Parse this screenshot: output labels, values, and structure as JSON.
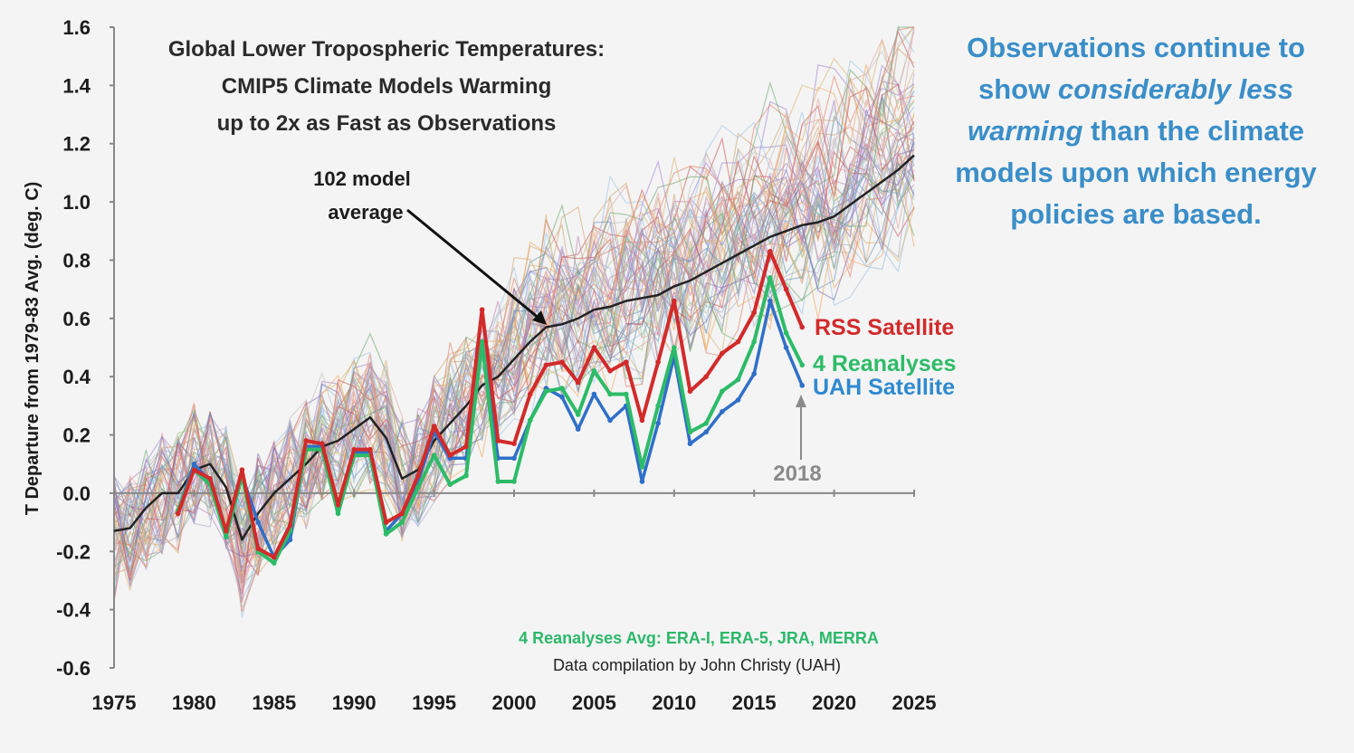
{
  "chart_data": {
    "type": "line",
    "title_lines": [
      "Global Lower Tropospheric Temperatures:",
      "CMIP5 Climate Models Warming",
      "up to 2x as Fast as Observations"
    ],
    "ylabel": "T Departure from 1979-83 Avg. (deg. C)",
    "xlim": [
      1975,
      2025
    ],
    "ylim": [
      -0.6,
      1.6
    ],
    "x_ticks": [
      "1975",
      "1980",
      "1985",
      "1990",
      "1995",
      "2000",
      "2005",
      "2010",
      "2015",
      "2020",
      "2025"
    ],
    "y_ticks": [
      "1.6",
      "1.4",
      "1.2",
      "1.0",
      "0.8",
      "0.6",
      "0.4",
      "0.2",
      "0.0",
      "-0.2",
      "-0.4",
      "-0.6"
    ],
    "annotations": {
      "model_avg_line1": "102 model",
      "model_avg_line2": "average",
      "year_2018": "2018"
    },
    "credits": {
      "reanalyses": "4 Reanalyses Avg: ERA-I, ERA-5, JRA, MERRA",
      "compilation": "Data compilation by John Christy (UAH)"
    },
    "series": [
      {
        "name": "102 model average",
        "color": "#222222",
        "x": [
          1975,
          1976,
          1977,
          1978,
          1979,
          1980,
          1981,
          1982,
          1983,
          1984,
          1985,
          1986,
          1987,
          1988,
          1989,
          1990,
          1991,
          1992,
          1993,
          1994,
          1995,
          1996,
          1997,
          1998,
          1999,
          2000,
          2001,
          2002,
          2003,
          2004,
          2005,
          2006,
          2007,
          2008,
          2009,
          2010,
          2011,
          2012,
          2013,
          2014,
          2015,
          2016,
          2017,
          2018,
          2019,
          2020,
          2021,
          2022,
          2023,
          2024,
          2025
        ],
        "values": [
          -0.13,
          -0.12,
          -0.05,
          0.0,
          0.0,
          0.08,
          0.1,
          0.02,
          -0.16,
          -0.07,
          0.0,
          0.05,
          0.1,
          0.16,
          0.18,
          0.22,
          0.26,
          0.19,
          0.05,
          0.08,
          0.18,
          0.24,
          0.3,
          0.37,
          0.4,
          0.46,
          0.52,
          0.57,
          0.58,
          0.6,
          0.63,
          0.64,
          0.66,
          0.67,
          0.68,
          0.71,
          0.73,
          0.76,
          0.79,
          0.82,
          0.85,
          0.88,
          0.9,
          0.92,
          0.93,
          0.95,
          0.99,
          1.03,
          1.07,
          1.11,
          1.16
        ]
      },
      {
        "name": "RSS Satellite",
        "color": "#d22a2a",
        "x": [
          1979,
          1980,
          1981,
          1982,
          1983,
          1984,
          1985,
          1986,
          1987,
          1988,
          1989,
          1990,
          1991,
          1992,
          1993,
          1994,
          1995,
          1996,
          1997,
          1998,
          1999,
          2000,
          2001,
          2002,
          2003,
          2004,
          2005,
          2006,
          2007,
          2008,
          2009,
          2010,
          2011,
          2012,
          2013,
          2014,
          2015,
          2016,
          2017,
          2018
        ],
        "values": [
          -0.07,
          0.08,
          0.05,
          -0.13,
          0.08,
          -0.19,
          -0.22,
          -0.11,
          0.18,
          0.17,
          -0.04,
          0.15,
          0.15,
          -0.1,
          -0.07,
          0.06,
          0.23,
          0.13,
          0.16,
          0.63,
          0.18,
          0.17,
          0.34,
          0.44,
          0.45,
          0.38,
          0.5,
          0.42,
          0.45,
          0.25,
          0.45,
          0.66,
          0.35,
          0.4,
          0.48,
          0.52,
          0.62,
          0.83,
          0.7,
          0.57
        ]
      },
      {
        "name": "4 Reanalyses",
        "color": "#2dbb68",
        "x": [
          1979,
          1980,
          1981,
          1982,
          1983,
          1984,
          1985,
          1986,
          1987,
          1988,
          1989,
          1990,
          1991,
          1992,
          1993,
          1994,
          1995,
          1996,
          1997,
          1998,
          1999,
          2000,
          2001,
          2002,
          2003,
          2004,
          2005,
          2006,
          2007,
          2008,
          2009,
          2010,
          2011,
          2012,
          2013,
          2014,
          2015,
          2016,
          2017,
          2018
        ],
        "values": [
          -0.06,
          0.08,
          0.03,
          -0.15,
          0.06,
          -0.2,
          -0.24,
          -0.13,
          0.15,
          0.15,
          -0.07,
          0.13,
          0.13,
          -0.14,
          -0.1,
          0.02,
          0.13,
          0.03,
          0.06,
          0.52,
          0.04,
          0.04,
          0.25,
          0.35,
          0.36,
          0.27,
          0.42,
          0.34,
          0.34,
          0.09,
          0.3,
          0.5,
          0.21,
          0.24,
          0.35,
          0.39,
          0.52,
          0.74,
          0.55,
          0.44
        ]
      },
      {
        "name": "UAH Satellite",
        "color": "#2f6fc8",
        "x": [
          1979,
          1980,
          1981,
          1982,
          1983,
          1984,
          1985,
          1986,
          1987,
          1988,
          1989,
          1990,
          1991,
          1992,
          1993,
          1994,
          1995,
          1996,
          1997,
          1998,
          1999,
          2000,
          2001,
          2002,
          2003,
          2004,
          2005,
          2006,
          2007,
          2008,
          2009,
          2010,
          2011,
          2012,
          2013,
          2014,
          2015,
          2016,
          2017,
          2018
        ],
        "values": [
          -0.06,
          0.1,
          0.04,
          -0.14,
          0.06,
          -0.1,
          -0.22,
          -0.16,
          0.16,
          0.16,
          -0.06,
          0.14,
          0.14,
          -0.13,
          -0.07,
          0.04,
          0.21,
          0.12,
          0.12,
          0.52,
          0.12,
          0.12,
          0.25,
          0.36,
          0.33,
          0.22,
          0.34,
          0.25,
          0.3,
          0.04,
          0.24,
          0.47,
          0.17,
          0.21,
          0.28,
          0.32,
          0.41,
          0.66,
          0.5,
          0.37
        ]
      }
    ],
    "models_background": "102 individual CMIP5 model runs (thin multicolored lines)"
  },
  "side_text": {
    "part1": "Observations continue to show ",
    "emph": "considerably less warming",
    "part2": " than the climate models upon which energy policies are based."
  }
}
